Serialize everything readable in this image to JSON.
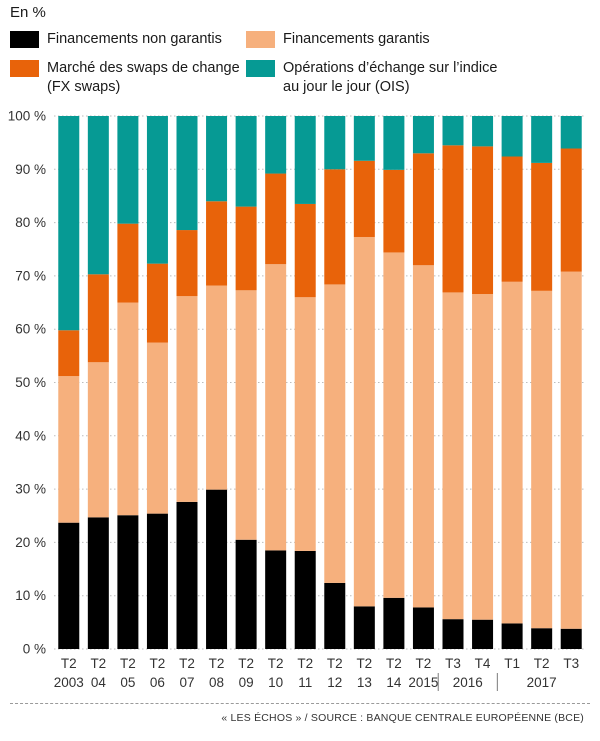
{
  "unit_label": "En %",
  "legend": [
    {
      "label": "Financements non garantis",
      "color": "#000000"
    },
    {
      "label": "Financements garantis",
      "color": "#f6b07d"
    },
    {
      "label": "Marché des swaps de change\n(FX swaps)",
      "color": "#e8630a"
    },
    {
      "label": "Opérations d’échange sur l’indice\nau jour le jour (OIS)",
      "color": "#069a94"
    }
  ],
  "source": "« LES ÉCHOS » / SOURCE : BANQUE CENTRALE EUROPÉENNE (BCE)",
  "chart_data": {
    "type": "bar",
    "stacked": true,
    "unit": "En %",
    "ylim": [
      0,
      100
    ],
    "yticks": [
      "0 %",
      "10 %",
      "20 %",
      "30 %",
      "40 %",
      "50 %",
      "60 %",
      "70 %",
      "80 %",
      "90 %",
      "100 %"
    ],
    "grid": true,
    "categories": [
      "T2 2003",
      "T2 04",
      "T2 05",
      "T2 06",
      "T2 07",
      "T2 08",
      "T2 09",
      "T2 10",
      "T2 11",
      "T2 12",
      "T2 13",
      "T2 14",
      "T2 2015",
      "T3 2016",
      "T4 2016",
      "T1 2017",
      "T2 2017",
      "T3 2017"
    ],
    "x_labels_top": [
      "T2",
      "T2",
      "T2",
      "T2",
      "T2",
      "T2",
      "T2",
      "T2",
      "T2",
      "T2",
      "T2",
      "T2",
      "T2",
      "T3",
      "T4",
      "T1",
      "T2",
      "T3"
    ],
    "x_labels_bottom": [
      "2003",
      "04",
      "05",
      "06",
      "07",
      "08",
      "09",
      "10",
      "11",
      "12",
      "13",
      "14",
      "2015",
      "2016",
      "2017"
    ],
    "series": [
      {
        "name": "Financements non garantis",
        "color": "#000000",
        "values": [
          23.7,
          24.7,
          25.1,
          25.4,
          27.6,
          29.9,
          20.5,
          18.5,
          18.4,
          12.4,
          8.0,
          9.6,
          7.8,
          5.6,
          5.5,
          4.8,
          3.9,
          3.8
        ]
      },
      {
        "name": "Financements garantis",
        "color": "#f6b07d",
        "values": [
          27.5,
          29.1,
          39.9,
          32.1,
          38.6,
          38.3,
          46.8,
          53.7,
          47.6,
          56.0,
          69.3,
          64.8,
          64.2,
          61.3,
          61.1,
          64.1,
          63.3,
          67.0
        ]
      },
      {
        "name": "Marché des swaps de change (FX swaps)",
        "color": "#e8630a",
        "values": [
          8.6,
          16.5,
          14.8,
          14.8,
          12.4,
          15.8,
          15.7,
          17.0,
          17.5,
          21.6,
          14.3,
          15.5,
          21.0,
          27.6,
          27.7,
          23.5,
          24.0,
          23.1
        ]
      },
      {
        "name": "Opérations d’échange sur l’indice au jour le jour (OIS)",
        "color": "#069a94",
        "values": [
          40.2,
          29.7,
          20.2,
          27.7,
          21.4,
          16.0,
          17.0,
          10.8,
          16.5,
          10.0,
          8.4,
          10.1,
          7.0,
          5.5,
          5.7,
          7.6,
          8.8,
          6.1
        ]
      }
    ]
  }
}
